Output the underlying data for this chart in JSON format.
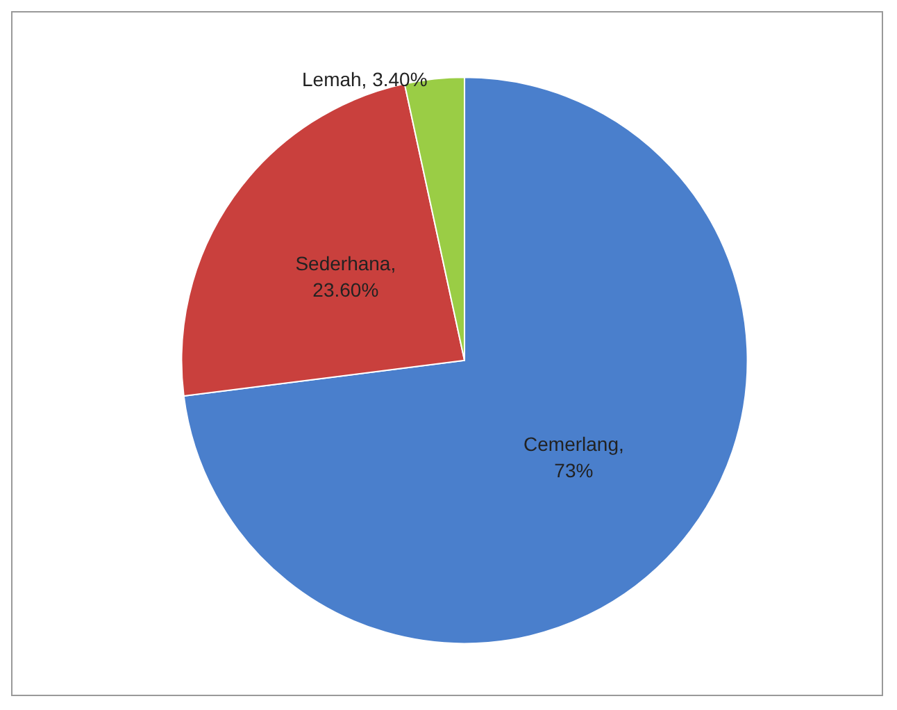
{
  "chart_data": {
    "type": "pie",
    "categories": [
      "Cemerlang",
      "Sederhana",
      "Lemah"
    ],
    "values": [
      73,
      23.6,
      3.4
    ],
    "value_labels": [
      ", 73%",
      ", 23.60%",
      ", 3.40%"
    ],
    "colors": [
      "#4a7fcc",
      "#c9403d",
      "#9acd45"
    ],
    "legend": false
  }
}
